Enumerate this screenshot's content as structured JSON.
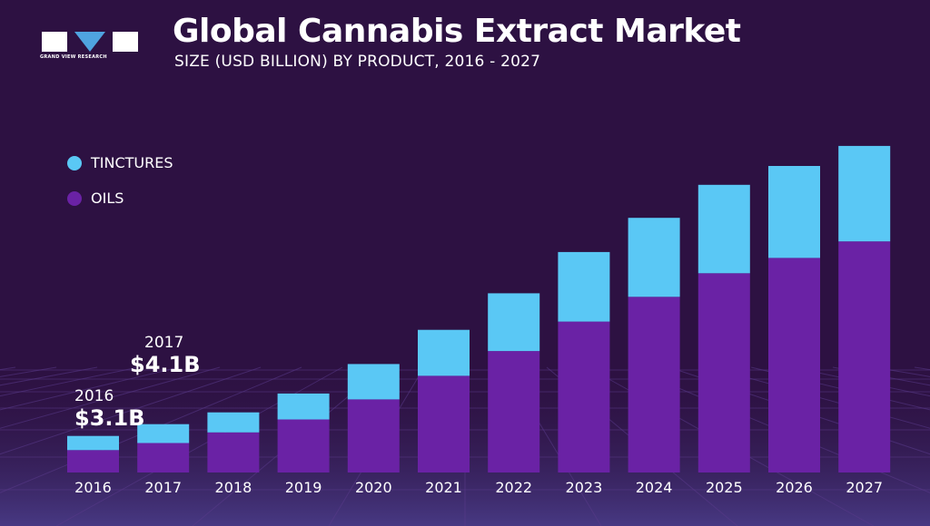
{
  "header": {
    "title": "Global Cannabis Extract Market",
    "subtitle": "SIZE (USD BILLION) BY PRODUCT, 2016 - 2027",
    "logo_text": "GRAND VIEW RESEARCH"
  },
  "colors": {
    "background": "#2d1142",
    "tinctures": "#5ac8f5",
    "oils": "#6a22a5",
    "grid": "#5a3a8a"
  },
  "chart_data": {
    "type": "bar",
    "stacked": true,
    "title": "Global Cannabis Extract Market",
    "subtitle": "SIZE (USD BILLION) BY PRODUCT, 2016 - 2027",
    "categories": [
      "2016",
      "2017",
      "2018",
      "2019",
      "2020",
      "2021",
      "2022",
      "2023",
      "2024",
      "2025",
      "2026",
      "2027"
    ],
    "series": [
      {
        "name": "OILS",
        "values": [
          1.9,
          2.5,
          3.4,
          4.5,
          6.2,
          8.2,
          10.3,
          12.8,
          14.9,
          16.9,
          18.2,
          19.6
        ]
      },
      {
        "name": "TINCTURES",
        "values": [
          1.2,
          1.6,
          1.7,
          2.2,
          3.0,
          3.9,
          4.9,
          5.9,
          6.7,
          7.5,
          7.8,
          8.1
        ]
      }
    ],
    "ylim": [
      0,
      30
    ],
    "legend_position": "top-left",
    "annotations": [
      {
        "category": "2016",
        "year_label": "2016",
        "value_label": "$3.1B"
      },
      {
        "category": "2017",
        "year_label": "2017",
        "value_label": "$4.1B"
      }
    ]
  }
}
